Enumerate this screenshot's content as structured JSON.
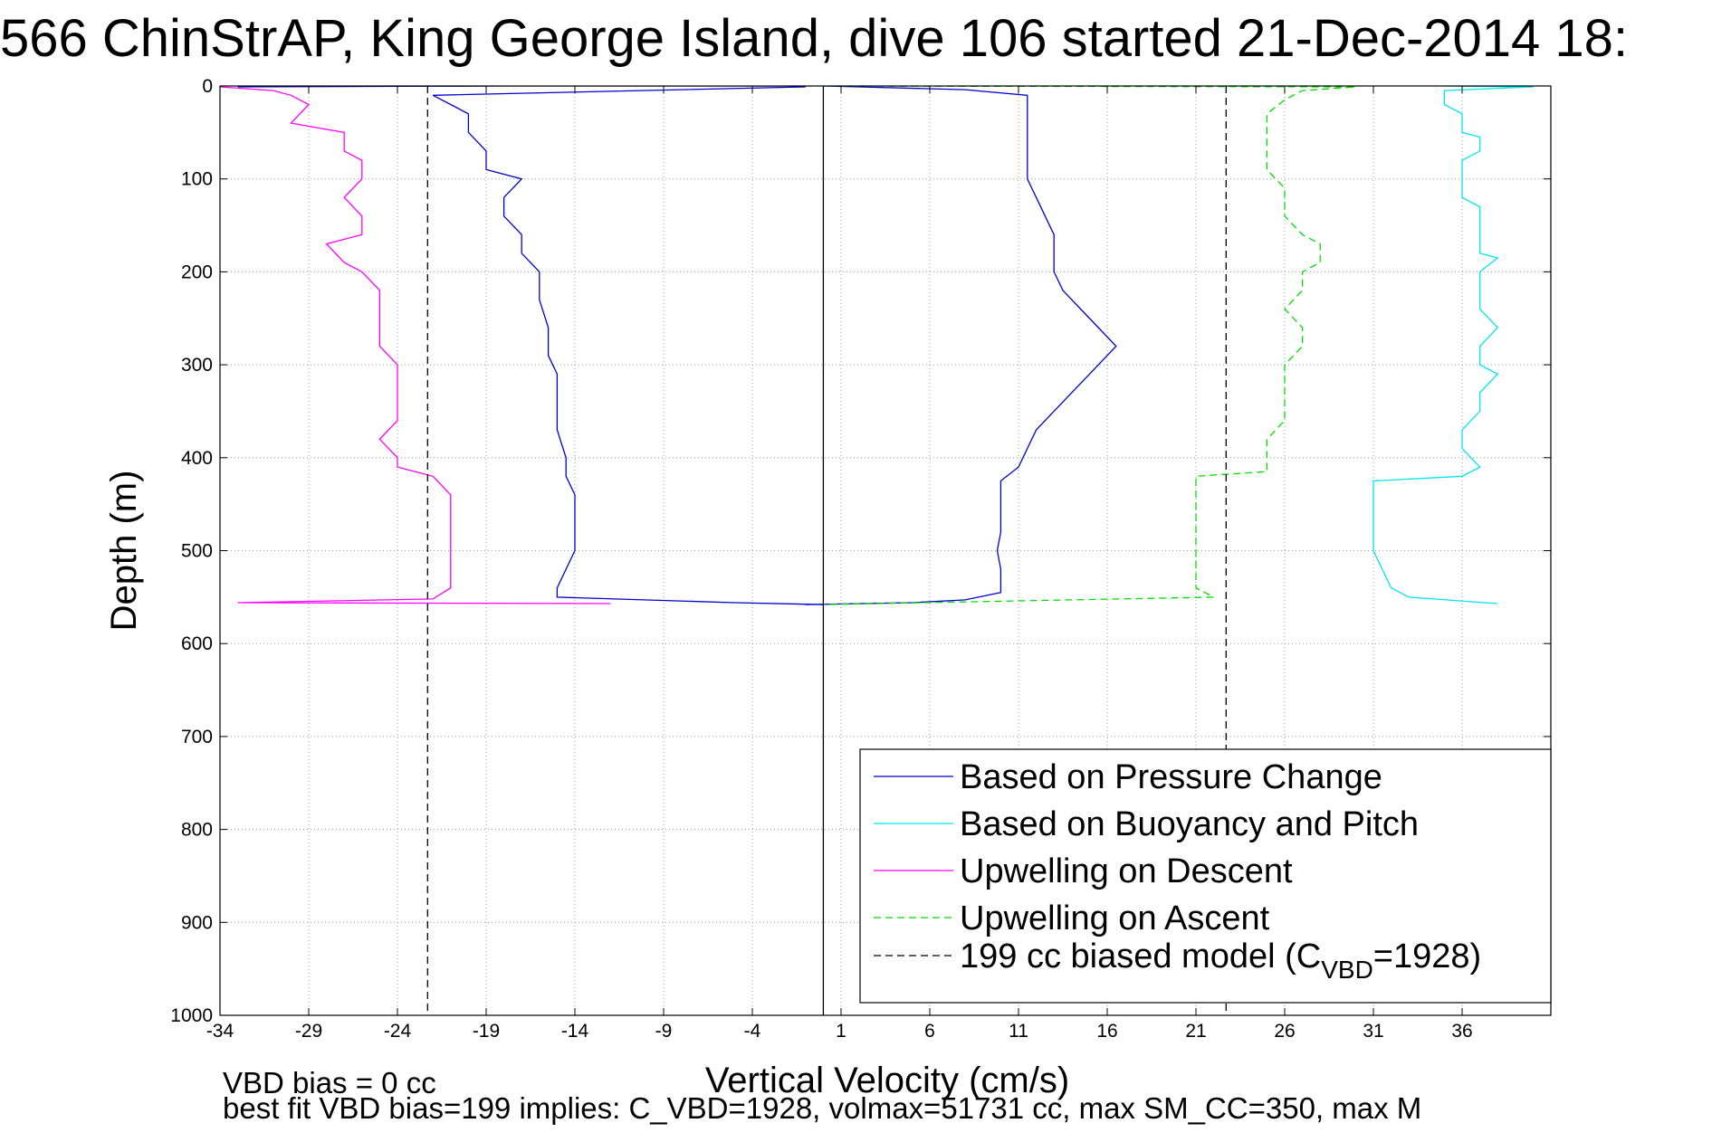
{
  "chart_data": {
    "type": "line",
    "title": "566 ChinStrAP, King George Island, dive 106 started 21-Dec-2014 18:",
    "xlabel": "Vertical Velocity (cm/s)",
    "ylabel": "Depth (m)",
    "xlim": [
      -34,
      41
    ],
    "ylim": [
      0,
      1000
    ],
    "y_reversed": true,
    "grid": "dotted",
    "x_ticks": [
      "-34",
      "-29",
      "-24",
      "-19",
      "-14",
      "-9",
      "-4",
      "1",
      "6",
      "11",
      "16",
      "21",
      "26",
      "31",
      "36"
    ],
    "y_ticks": [
      "0",
      "100",
      "200",
      "300",
      "400",
      "500",
      "600",
      "700",
      "800",
      "900",
      "1000"
    ],
    "legend_position": "bottom-right",
    "legend": [
      {
        "label": "Based on Pressure Change",
        "color": "#0000cc",
        "style": "solid"
      },
      {
        "label": "Based on Buoyancy and Pitch",
        "color": "#00e5ee",
        "style": "solid"
      },
      {
        "label": "Upwelling on Descent",
        "color": "#ff00ff",
        "style": "solid"
      },
      {
        "label": "Upwelling on Ascent",
        "color": "#00dd00",
        "style": "dashed"
      },
      {
        "label_prefix": "199 cc biased model (C",
        "label_sub": "VBD",
        "label_suffix": "=1928)",
        "color": "#000000",
        "style": "dashed"
      }
    ],
    "series": [
      {
        "name": "Based on Pressure Change (descent)",
        "color": "#0000cc",
        "points": [
          [
            -33,
            1
          ],
          [
            -18,
            0
          ],
          [
            -2,
            0
          ],
          [
            -1,
            1
          ],
          [
            -22,
            10
          ],
          [
            -21,
            20
          ],
          [
            -20,
            30
          ],
          [
            -20,
            50
          ],
          [
            -19,
            70
          ],
          [
            -19,
            90
          ],
          [
            -17,
            100
          ],
          [
            -18,
            120
          ],
          [
            -18,
            140
          ],
          [
            -17,
            160
          ],
          [
            -17,
            180
          ],
          [
            -16,
            200
          ],
          [
            -16,
            230
          ],
          [
            -15.5,
            260
          ],
          [
            -15.5,
            290
          ],
          [
            -15,
            310
          ],
          [
            -15,
            340
          ],
          [
            -15,
            370
          ],
          [
            -14.5,
            400
          ],
          [
            -14.5,
            420
          ],
          [
            -14,
            440
          ],
          [
            -14,
            460
          ],
          [
            -14,
            480
          ],
          [
            -14,
            500
          ],
          [
            -14.5,
            520
          ],
          [
            -15,
            540
          ],
          [
            -15,
            550
          ],
          [
            -5,
            556
          ],
          [
            0,
            558
          ]
        ]
      },
      {
        "name": "Based on Pressure Change (ascent)",
        "color": "#0000cc",
        "points": [
          [
            -1,
            558
          ],
          [
            5,
            556
          ],
          [
            8,
            553
          ],
          [
            10,
            545
          ],
          [
            10,
            520
          ],
          [
            9.8,
            500
          ],
          [
            10,
            480
          ],
          [
            10,
            460
          ],
          [
            10,
            440
          ],
          [
            10,
            425
          ],
          [
            11,
            410
          ],
          [
            11.5,
            390
          ],
          [
            12,
            370
          ],
          [
            13,
            350
          ],
          [
            14,
            330
          ],
          [
            15,
            310
          ],
          [
            16,
            290
          ],
          [
            16.5,
            280
          ],
          [
            15.5,
            260
          ],
          [
            14.5,
            240
          ],
          [
            13.5,
            220
          ],
          [
            13,
            200
          ],
          [
            13,
            180
          ],
          [
            13,
            160
          ],
          [
            12.5,
            140
          ],
          [
            12,
            120
          ],
          [
            11.5,
            100
          ],
          [
            11.5,
            80
          ],
          [
            11.5,
            60
          ],
          [
            11.5,
            40
          ],
          [
            11.5,
            20
          ],
          [
            11.5,
            10
          ],
          [
            8,
            4
          ],
          [
            2,
            1
          ],
          [
            0,
            0
          ]
        ]
      },
      {
        "name": "Based on Buoyancy and Pitch",
        "color": "#00e5ee",
        "points": [
          [
            35,
            0
          ],
          [
            40,
            1
          ],
          [
            35,
            5
          ],
          [
            35,
            20
          ],
          [
            36,
            30
          ],
          [
            36,
            50
          ],
          [
            37,
            55
          ],
          [
            37,
            70
          ],
          [
            36,
            80
          ],
          [
            36,
            100
          ],
          [
            36,
            120
          ],
          [
            37,
            130
          ],
          [
            37,
            160
          ],
          [
            37,
            180
          ],
          [
            38,
            185
          ],
          [
            37,
            200
          ],
          [
            37,
            220
          ],
          [
            37,
            240
          ],
          [
            38,
            260
          ],
          [
            37,
            280
          ],
          [
            37,
            300
          ],
          [
            38,
            310
          ],
          [
            37,
            330
          ],
          [
            37,
            350
          ],
          [
            36,
            370
          ],
          [
            36,
            390
          ],
          [
            37,
            410
          ],
          [
            36,
            420
          ],
          [
            31,
            425
          ],
          [
            31,
            440
          ],
          [
            31,
            460
          ],
          [
            31,
            480
          ],
          [
            31,
            500
          ],
          [
            31.5,
            520
          ],
          [
            32,
            540
          ],
          [
            33,
            550
          ],
          [
            38,
            557
          ]
        ]
      },
      {
        "name": "Upwelling on Descent",
        "color": "#ff00ff",
        "points": [
          [
            -34,
            1
          ],
          [
            -31,
            5
          ],
          [
            -30,
            10
          ],
          [
            -29,
            20
          ],
          [
            -30,
            40
          ],
          [
            -27,
            50
          ],
          [
            -27,
            70
          ],
          [
            -26,
            80
          ],
          [
            -26,
            100
          ],
          [
            -27,
            120
          ],
          [
            -26,
            140
          ],
          [
            -26,
            160
          ],
          [
            -28,
            170
          ],
          [
            -27,
            190
          ],
          [
            -26,
            200
          ],
          [
            -25,
            220
          ],
          [
            -25,
            240
          ],
          [
            -25,
            260
          ],
          [
            -25,
            280
          ],
          [
            -24,
            300
          ],
          [
            -24,
            320
          ],
          [
            -24,
            340
          ],
          [
            -24,
            360
          ],
          [
            -25,
            380
          ],
          [
            -24,
            400
          ],
          [
            -24,
            410
          ],
          [
            -22,
            420
          ],
          [
            -21,
            440
          ],
          [
            -21,
            460
          ],
          [
            -21,
            480
          ],
          [
            -21,
            500
          ],
          [
            -21,
            520
          ],
          [
            -21,
            540
          ],
          [
            -22,
            552
          ],
          [
            -33,
            556
          ],
          [
            -12,
            557
          ]
        ]
      },
      {
        "name": "Upwelling on Ascent",
        "color": "#00dd00",
        "style": "dashed",
        "points": [
          [
            -1,
            0
          ],
          [
            30,
            1
          ],
          [
            27,
            5
          ],
          [
            26,
            15
          ],
          [
            25,
            30
          ],
          [
            25,
            60
          ],
          [
            25,
            90
          ],
          [
            26,
            110
          ],
          [
            26,
            140
          ],
          [
            27,
            160
          ],
          [
            28,
            170
          ],
          [
            28,
            190
          ],
          [
            27,
            200
          ],
          [
            27,
            220
          ],
          [
            26,
            240
          ],
          [
            27,
            260
          ],
          [
            27,
            280
          ],
          [
            26,
            300
          ],
          [
            26,
            320
          ],
          [
            26,
            340
          ],
          [
            26,
            360
          ],
          [
            25,
            380
          ],
          [
            25,
            400
          ],
          [
            25,
            415
          ],
          [
            21,
            420
          ],
          [
            21,
            440
          ],
          [
            21,
            460
          ],
          [
            21,
            480
          ],
          [
            21,
            500
          ],
          [
            21,
            520
          ],
          [
            21,
            540
          ],
          [
            22,
            550
          ],
          [
            0,
            558
          ]
        ]
      },
      {
        "name": "199 cc biased model (C_VBD=1928) descent",
        "color": "#000000",
        "style": "dashed",
        "points": [
          [
            -22.3,
            0
          ],
          [
            -22.3,
            1000
          ]
        ]
      },
      {
        "name": "199 cc biased model (C_VBD=1928) ascent",
        "color": "#000000",
        "style": "dashed",
        "points": [
          [
            22.7,
            0
          ],
          [
            22.7,
            1000
          ]
        ]
      },
      {
        "name": "zero reference",
        "color": "#000000",
        "style": "solid",
        "points": [
          [
            0,
            0
          ],
          [
            0,
            1000
          ]
        ]
      }
    ]
  },
  "annotations": {
    "vbd_bias": "VBD bias = 0 cc",
    "best_fit": "best fit VBD bias=199 implies: C_VBD=1928, volmax=51731 cc, max SM_CC=350, max M"
  }
}
